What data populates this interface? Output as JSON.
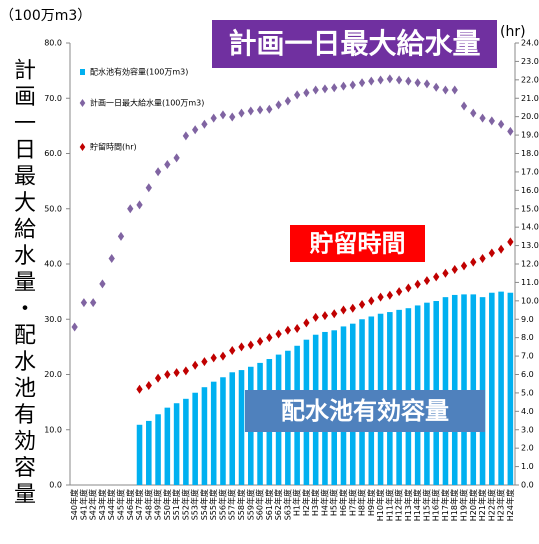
{
  "chart_data": {
    "type": "combo",
    "y_unit": "（100万m3）",
    "y2_unit": "(hr)",
    "ylabel": "計画一日最大給水量・配水池有効容量",
    "annotations": [
      "計画一日最大給水量",
      "貯留時間",
      "配水池有効容量"
    ],
    "categories": [
      "S40年度",
      "S41年度",
      "S42年度",
      "S43年度",
      "S44年度",
      "S45年度",
      "S46年度",
      "S47年度",
      "S48年度",
      "S49年度",
      "S50年度",
      "S51年度",
      "S52年度",
      "S53年度",
      "S54年度",
      "S55年度",
      "S56年度",
      "S57年度",
      "S58年度",
      "S59年度",
      "S60年度",
      "S61年度",
      "S62年度",
      "S63年度",
      "H1年度",
      "H2年度",
      "H3年度",
      "H4年度",
      "H5年度",
      "H6年度",
      "H7年度",
      "H8年度",
      "H9年度",
      "H10年度",
      "H11年度",
      "H12年度",
      "H13年度",
      "H14年度",
      "H15年度",
      "H16年度",
      "H17年度",
      "H18年度",
      "H19年度",
      "H20年度",
      "H21年度",
      "H22年度",
      "H23年度",
      "H24年度"
    ],
    "series": [
      {
        "name": "配水池有効容量(100万m3)",
        "kind": "bar",
        "color": "#00b0f0",
        "values": [
          null,
          null,
          null,
          null,
          null,
          null,
          null,
          10.9,
          11.6,
          12.8,
          14.0,
          14.8,
          15.6,
          16.7,
          17.7,
          18.7,
          19.5,
          20.4,
          20.8,
          21.4,
          22.1,
          22.8,
          23.6,
          24.3,
          25.2,
          26.3,
          27.2,
          27.7,
          28.0,
          28.7,
          29.2,
          30.0,
          30.5,
          31.0,
          31.3,
          31.7,
          32.0,
          32.5,
          33.0,
          33.3,
          34.0,
          34.4,
          34.5,
          34.5,
          34.0,
          34.8,
          35.0,
          34.8
        ]
      },
      {
        "name": "計画一日最大給水量(100万m3)",
        "kind": "diamond",
        "color": "#8064a2",
        "values": [
          28.6,
          33,
          33,
          36.4,
          41,
          45,
          50,
          50.7,
          53.8,
          56.7,
          58,
          59.2,
          63.2,
          64.3,
          65.3,
          66.4,
          67,
          66.6,
          67.3,
          67.7,
          67.9,
          68,
          68.8,
          69.5,
          70.6,
          71,
          71.5,
          71.7,
          71.9,
          72.2,
          72.4,
          72.8,
          73.1,
          73.3,
          73.5,
          73.3,
          73.1,
          72.8,
          72.6,
          72,
          71.5,
          71.5,
          68.6,
          67.3,
          66.4,
          65.9,
          65.3,
          64
        ]
      },
      {
        "name": "貯留時間(hr)",
        "kind": "diamond",
        "axis": "y2",
        "color": "#c00000",
        "values": [
          null,
          null,
          null,
          null,
          null,
          null,
          null,
          5.2,
          5.4,
          5.8,
          6.0,
          6.1,
          6.2,
          6.5,
          6.7,
          6.9,
          7.0,
          7.3,
          7.5,
          7.6,
          7.8,
          8.0,
          8.2,
          8.4,
          8.5,
          8.8,
          9.1,
          9.2,
          9.3,
          9.5,
          9.6,
          9.8,
          10.0,
          10.2,
          10.3,
          10.5,
          10.7,
          10.9,
          11.1,
          11.3,
          11.5,
          11.7,
          11.9,
          12.1,
          12.3,
          12.6,
          12.8,
          13.2
        ]
      }
    ],
    "ylim": [
      0,
      80
    ],
    "yticks": [
      {
        "value": 0,
        "label": "0.0"
      },
      {
        "value": 10,
        "label": "10.0"
      },
      {
        "value": 20,
        "label": "20.0"
      },
      {
        "value": 30,
        "label": "30.0"
      },
      {
        "value": 40,
        "label": "40.0"
      },
      {
        "value": 50,
        "label": "50.0"
      },
      {
        "value": 60,
        "label": "60.0"
      },
      {
        "value": 70,
        "label": "70.0"
      },
      {
        "value": 80,
        "label": "80.0"
      }
    ],
    "y2lim": [
      0,
      24
    ],
    "y2ticks": [
      {
        "value": 0,
        "label": "0.0"
      },
      {
        "value": 1,
        "label": "1.0"
      },
      {
        "value": 2,
        "label": "2.0"
      },
      {
        "value": 3,
        "label": "3.0"
      },
      {
        "value": 4,
        "label": "4.0"
      },
      {
        "value": 5,
        "label": "5.0"
      },
      {
        "value": 6,
        "label": "6.0"
      },
      {
        "value": 7,
        "label": "7.0"
      },
      {
        "value": 8,
        "label": "8.0"
      },
      {
        "value": 9,
        "label": "9.0"
      },
      {
        "value": 10,
        "label": "10.0"
      },
      {
        "value": 11,
        "label": "11.0"
      },
      {
        "value": 12,
        "label": "12.0"
      },
      {
        "value": 13,
        "label": "13.0"
      },
      {
        "value": 14,
        "label": "14.0"
      },
      {
        "value": 15,
        "label": "15.0"
      },
      {
        "value": 16,
        "label": "16.0"
      },
      {
        "value": 17,
        "label": "17.0"
      },
      {
        "value": 18,
        "label": "18.0"
      },
      {
        "value": 19,
        "label": "19.0"
      },
      {
        "value": 20,
        "label": "20.0"
      },
      {
        "value": 21,
        "label": "21.0"
      },
      {
        "value": 22,
        "label": "22.0"
      },
      {
        "value": 23,
        "label": "23.0"
      },
      {
        "value": 24,
        "label": "24.0"
      }
    ],
    "grid": false
  }
}
